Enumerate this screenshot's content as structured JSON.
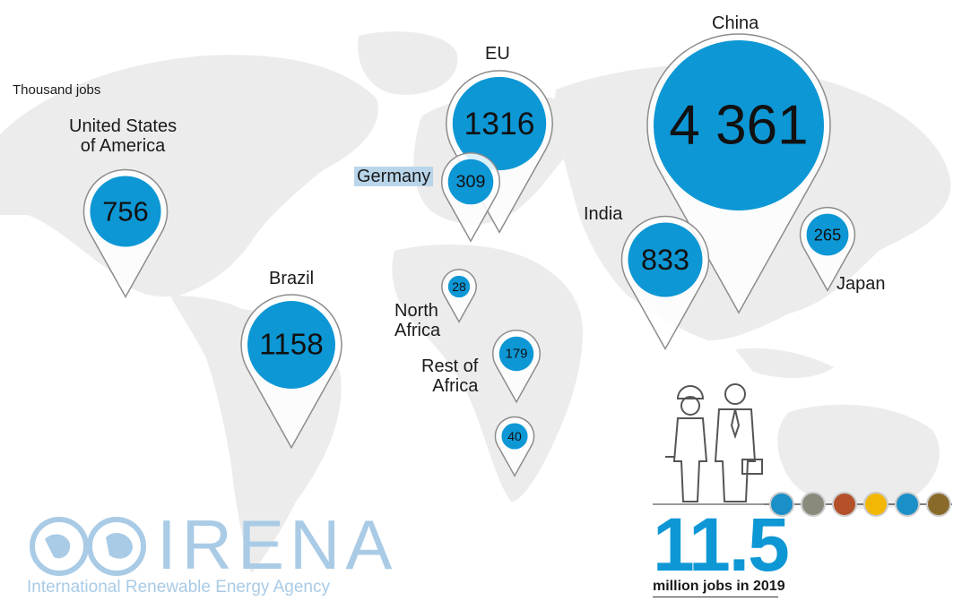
{
  "chart_data": {
    "type": "bubble-map",
    "unit_label": "Thousand jobs",
    "regions": [
      {
        "name": "United States of America",
        "label_lines": [
          "United States",
          "of America"
        ],
        "value": 756,
        "display": "756"
      },
      {
        "name": "Brazil",
        "label_lines": [
          "Brazil"
        ],
        "value": 1158,
        "display": "1158"
      },
      {
        "name": "EU",
        "label_lines": [
          "EU"
        ],
        "value": 1316,
        "display": "1316"
      },
      {
        "name": "Germany",
        "label_lines": [
          "Germany"
        ],
        "value": 309,
        "display": "309"
      },
      {
        "name": "North Africa",
        "label_lines": [
          "North",
          "Africa"
        ],
        "value": 28,
        "display": "28"
      },
      {
        "name": "Rest of Africa",
        "label_lines": [
          "Rest of",
          "Africa"
        ],
        "value": 179,
        "display": "179"
      },
      {
        "name": "",
        "label_lines": [],
        "value": 40,
        "display": "40"
      },
      {
        "name": "China",
        "label_lines": [
          "China"
        ],
        "value": 4361,
        "display": "4 361"
      },
      {
        "name": "India",
        "label_lines": [
          "India"
        ],
        "value": 833,
        "display": "833"
      },
      {
        "name": "Japan",
        "label_lines": [
          "Japan"
        ],
        "value": 265,
        "display": "265"
      }
    ],
    "total": {
      "value": "11.5",
      "caption": "million jobs in 2019"
    },
    "bubble_color": "#0d97d5",
    "map_color": "#ececec"
  },
  "branding": {
    "logo_text": "IRENA",
    "logo_subtitle": "International Renewable Energy Agency",
    "logo_color": "#a9cbe6"
  }
}
